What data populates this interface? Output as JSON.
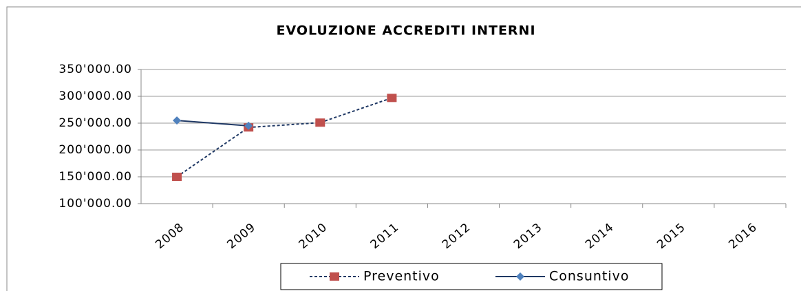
{
  "chart_data": {
    "type": "line",
    "title": "EVOLUZIONE ACCREDITI INTERNI",
    "categories": [
      "2008",
      "2009",
      "2010",
      "2011",
      "2012",
      "2013",
      "2014",
      "2015",
      "2016"
    ],
    "series": [
      {
        "name": "Preventivo",
        "color": "#1f3864",
        "line_style": "dashed",
        "marker": "square",
        "marker_color": "#c0504d",
        "values": [
          150000,
          242000,
          251000,
          297000,
          null,
          null,
          null,
          null,
          null
        ]
      },
      {
        "name": "Consuntivo",
        "color": "#1f3864",
        "line_style": "solid",
        "marker": "diamond",
        "marker_color": "#4f81bd",
        "values": [
          255000,
          245000,
          null,
          null,
          null,
          null,
          null,
          null,
          null
        ]
      }
    ],
    "ylim": [
      100000,
      350000
    ],
    "yticks": [
      {
        "value": 100000,
        "label": "100'000.00"
      },
      {
        "value": 150000,
        "label": "150'000.00"
      },
      {
        "value": 200000,
        "label": "200'000.00"
      },
      {
        "value": 250000,
        "label": "250'000.00"
      },
      {
        "value": 300000,
        "label": "300'000.00"
      },
      {
        "value": 350000,
        "label": "350'000.00"
      }
    ],
    "grid": true,
    "legend": "bottom"
  }
}
